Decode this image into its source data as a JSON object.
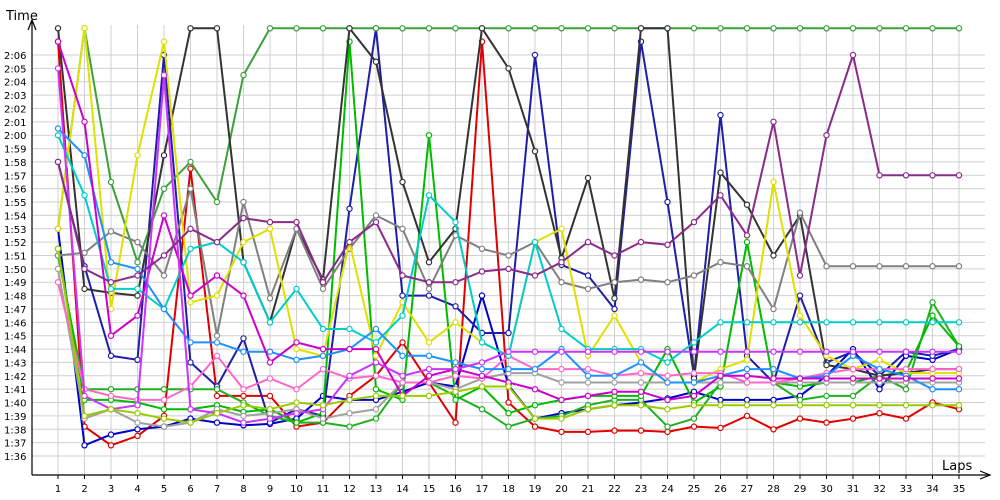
{
  "chart_data": {
    "type": "line",
    "xlabel": "Laps",
    "ylabel": "Time",
    "x": [
      1,
      2,
      3,
      4,
      5,
      6,
      7,
      8,
      9,
      10,
      11,
      12,
      13,
      14,
      15,
      16,
      17,
      18,
      19,
      20,
      21,
      22,
      23,
      24,
      25,
      26,
      27,
      28,
      29,
      30,
      31,
      32,
      33,
      34,
      35
    ],
    "y_ticks": [
      "1:36",
      "1:37",
      "1:38",
      "1:39",
      "1:40",
      "1:41",
      "1:42",
      "1:43",
      "1:44",
      "1:45",
      "1:46",
      "1:47",
      "1:48",
      "1:49",
      "1:50",
      "1:51",
      "1:52",
      "1:53",
      "1:54",
      "1:55",
      "1:56",
      "1:57",
      "1:58",
      "1:59",
      "2:00",
      "2:01",
      "2:02",
      "2:03",
      "2:04",
      "2:05",
      "2:06"
    ],
    "ylim_seconds": [
      95,
      128
    ],
    "grid": true,
    "series": [
      {
        "color": "#e00000",
        "values": [
          127,
          98.2,
          96.8,
          97.5,
          99,
          117.5,
          100.5,
          100.5,
          100.5,
          98.2,
          98.5,
          100.5,
          102,
          104.5,
          101.5,
          98.5,
          127,
          100,
          98.2,
          97.8,
          97.8,
          97.9,
          97.9,
          97.8,
          98.2,
          98.1,
          99,
          98,
          98.8,
          98.5,
          98.8,
          99.2,
          98.8,
          100,
          99.5
        ]
      },
      {
        "color": "#0000c8",
        "values": [
          113,
          96.8,
          97.6,
          98,
          98.2,
          98.8,
          98.5,
          98.3,
          98.4,
          98.8,
          100.5,
          100.2,
          100.2,
          100.8,
          101.5,
          101.2,
          108,
          101.3,
          98.8,
          99.2,
          99.5,
          99.8,
          100,
          100.3,
          100.8,
          100.2,
          100.2,
          100.2,
          100.5,
          102,
          104,
          101,
          103.5,
          103.2,
          104
        ]
      },
      {
        "color": "#1e1eaa",
        "values": [
          118,
          110.2,
          103.5,
          103.2,
          126,
          103,
          101.2,
          104.8,
          98.5,
          99.5,
          99,
          114.5,
          128,
          108,
          108,
          107.2,
          105.2,
          105.2,
          126,
          110.3,
          109.5,
          107,
          127,
          115,
          102,
          121.5,
          103.5,
          101.5,
          108,
          103,
          103.8,
          102,
          103.8,
          103.5,
          104
        ]
      },
      {
        "color": "#20b020",
        "values": [
          111,
          101,
          101,
          101,
          101,
          101,
          101,
          100,
          99,
          98.5,
          98.5,
          98.2,
          98.8,
          101.5,
          101.5,
          100.5,
          99.5,
          98.2,
          98.8,
          99,
          99.8,
          100.2,
          100.2,
          98.2,
          98.8,
          101.5,
          101.5,
          101.5,
          100.2,
          100.5,
          100.5,
          102,
          101,
          107.5,
          104.2
        ]
      },
      {
        "color": "#00bb00",
        "values": [
          111.5,
          100.2,
          100.2,
          100,
          99.5,
          99.5,
          99.8,
          99.3,
          99.5,
          98.5,
          99.2,
          127,
          101,
          100.2,
          120,
          100.2,
          101.2,
          99.2,
          99.8,
          100.2,
          100.5,
          100.5,
          100.5,
          104,
          100,
          101.2,
          112,
          101.5,
          101.2,
          101.5,
          101.5,
          102,
          102.3,
          106.5,
          104.2
        ]
      },
      {
        "color": "#3ca03c",
        "values": [
          113,
          128,
          116.5,
          110.5,
          116,
          118,
          115,
          124.5,
          128,
          128,
          128,
          128,
          128,
          128,
          128,
          128,
          128,
          128,
          128,
          128,
          128,
          128,
          128,
          128,
          128,
          128,
          128,
          128,
          128,
          128,
          128,
          128,
          128,
          128,
          128
        ]
      },
      {
        "color": "#333333",
        "values": [
          128,
          108.5,
          108.2,
          108,
          118.5,
          128,
          128,
          110.5,
          106,
          113,
          109.2,
          128,
          125.5,
          116.5,
          110.5,
          113,
          128,
          125,
          118.8,
          110.8,
          116.8,
          107.8,
          128,
          128,
          101.8,
          117.2,
          114.8,
          111,
          114,
          102.8,
          102.5,
          102,
          102.2,
          102.5,
          102.5
        ]
      },
      {
        "color": "#808080",
        "values": [
          111,
          111.2,
          112.8,
          112,
          109.5,
          116,
          105,
          115,
          107.8,
          113,
          108.5,
          111.5,
          114,
          113,
          108.5,
          112.5,
          111.5,
          111,
          112,
          109,
          108.5,
          109,
          109.2,
          109,
          109.5,
          110.5,
          110.2,
          107,
          114.2,
          110.2,
          110.2,
          110.2,
          110.2,
          110.2,
          110.2
        ]
      },
      {
        "color": "#a0a0a0",
        "values": [
          110,
          98.8,
          99.5,
          98.5,
          98.2,
          98.5,
          99.5,
          99,
          99.2,
          99.5,
          98.8,
          99.2,
          99.5,
          101.5,
          101.5,
          101,
          101.8,
          102.2,
          102.2,
          101.5,
          101.5,
          101.5,
          101.5,
          101.5,
          101.5,
          101.5,
          101.5,
          101.5,
          101.5,
          101.5,
          101.5,
          101.5,
          101.5,
          101.5,
          101.5
        ]
      },
      {
        "color": "#e0e000",
        "values": [
          113,
          128,
          107,
          118.5,
          127,
          107.5,
          108,
          112,
          113,
          104,
          103.5,
          112,
          103.5,
          107.5,
          104.5,
          106,
          104.5,
          103.5,
          112,
          113,
          103.5,
          106.5,
          103,
          101.5,
          101.5,
          102.5,
          103.2,
          116.5,
          106.5,
          103.5,
          102.5,
          103.2,
          102.2,
          102.2,
          102.2
        ]
      },
      {
        "color": "#ff66cc",
        "values": [
          109,
          101,
          100.5,
          100.2,
          100.2,
          101.2,
          103.5,
          101,
          101.8,
          101,
          102.5,
          101.8,
          102,
          101.5,
          101.5,
          102,
          101.8,
          103.5,
          102.5,
          102.5,
          102.5,
          102,
          102.2,
          102,
          102.2,
          102.2,
          101.5,
          101.5,
          101.8,
          102.2,
          102.5,
          102.5,
          102.5,
          102.5,
          102.5
        ]
      },
      {
        "color": "#00cccc",
        "values": [
          120,
          115.5,
          108.5,
          108.5,
          107,
          111.5,
          112,
          110.5,
          106,
          108.5,
          105.5,
          105.5,
          104.5,
          106.5,
          115.5,
          113.5,
          104.5,
          103.5,
          112,
          105.5,
          104,
          104,
          104,
          103,
          104.5,
          106,
          106,
          106,
          106,
          106,
          106,
          106,
          106,
          106,
          106
        ]
      },
      {
        "color": "#1e90ff",
        "values": [
          120.5,
          118.5,
          110.5,
          110,
          107,
          104.5,
          104.5,
          103.8,
          103.8,
          103.2,
          103.5,
          104,
          105.5,
          103.5,
          103.5,
          103,
          102.5,
          102.5,
          102.5,
          104,
          102,
          102,
          103,
          101.5,
          101.5,
          102,
          102.5,
          102.5,
          101.8,
          102,
          103.5,
          102.5,
          102,
          101,
          101
        ]
      },
      {
        "color": "#cc00cc",
        "values": [
          127,
          121,
          105,
          106.5,
          114,
          108,
          109.5,
          108,
          103,
          104.5,
          104,
          104,
          104,
          100.5,
          102,
          102.5,
          102,
          101.5,
          101,
          100.2,
          100.5,
          100.8,
          100.8,
          100.2,
          100.5,
          102,
          102,
          101.8,
          101.8,
          101.8,
          101.8,
          101.8,
          101.8,
          101.8,
          101.8
        ]
      },
      {
        "color": "#cc33ff",
        "values": [
          125,
          100.5,
          99.5,
          99.8,
          124.5,
          99.5,
          99.2,
          98.5,
          98.8,
          99.2,
          99.5,
          102,
          103,
          102,
          102.5,
          102.5,
          103,
          103.8,
          103.8,
          103.8,
          103.8,
          103.8,
          103.8,
          103.8,
          103.8,
          103.8,
          103.8,
          103.8,
          103.8,
          103.8,
          103.8,
          103.8,
          103.8,
          103.8,
          103.8
        ]
      },
      {
        "color": "#8a2a8a",
        "values": [
          118,
          110,
          109,
          109.5,
          111,
          113,
          112,
          113.8,
          113.5,
          113.5,
          109,
          112,
          113.5,
          109.5,
          109,
          109,
          109.8,
          110,
          109.5,
          110.5,
          112,
          111,
          112,
          111.8,
          113.5,
          115.5,
          112.5,
          121,
          109.5,
          120,
          126,
          117,
          117,
          117,
          117
        ]
      },
      {
        "color": "#99cc00",
        "values": [
          111.5,
          99,
          99.5,
          99.2,
          98.8,
          98.5,
          99.2,
          99.8,
          99.5,
          100,
          99.8,
          100.2,
          100.5,
          100.5,
          100.5,
          100.8,
          101.2,
          101.2,
          98.8,
          98.8,
          99.5,
          99.8,
          99.8,
          99.5,
          99.8,
          99.8,
          99.8,
          99.8,
          99.8,
          99.8,
          99.8,
          99.8,
          99.8,
          99.8,
          99.8
        ]
      }
    ]
  }
}
